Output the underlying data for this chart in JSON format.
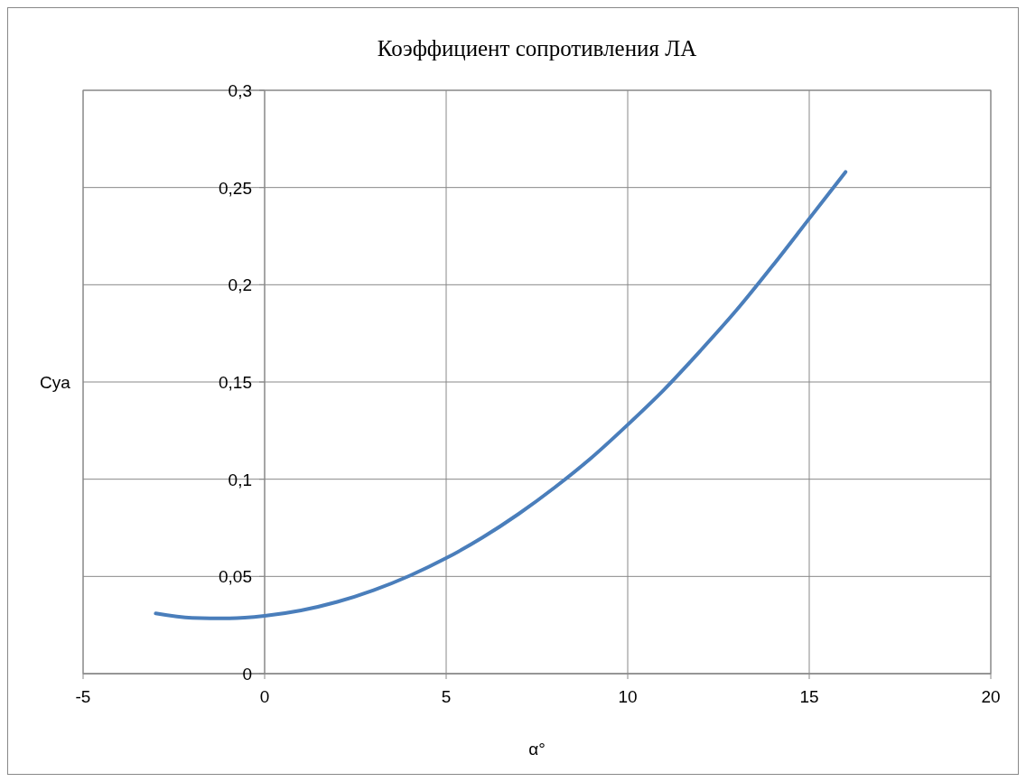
{
  "chart_data": {
    "type": "line",
    "title": "Коэффициент сопротивления ЛА",
    "xlabel": "α°",
    "ylabel": "Cya",
    "x": [
      -3,
      -2,
      -1,
      0,
      1,
      2,
      3,
      4,
      5,
      6,
      7,
      8,
      9,
      10,
      11,
      12,
      13,
      14,
      15,
      16
    ],
    "series": [
      {
        "color": "#4a7ebb",
        "values": [
          0.031,
          0.0287,
          0.0284,
          0.0297,
          0.0325,
          0.0369,
          0.0429,
          0.0504,
          0.0594,
          0.07,
          0.0822,
          0.0959,
          0.111,
          0.128,
          0.146,
          0.166,
          0.187,
          0.21,
          0.234,
          0.258
        ]
      }
    ],
    "xlim": [
      -5,
      20
    ],
    "xticks": [
      -5,
      0,
      5,
      10,
      15,
      20
    ],
    "ylim": [
      0,
      0.3
    ],
    "yticks": [
      0,
      {
        "value": 0.05,
        "label": "0,05"
      },
      {
        "value": 0.1,
        "label": "0,1"
      },
      {
        "value": 0.15,
        "label": "0,15"
      },
      {
        "value": 0.2,
        "label": "0,2"
      },
      {
        "value": 0.25,
        "label": "0,25"
      },
      {
        "value": 0.3,
        "label": "0,3"
      }
    ],
    "grid": true,
    "marker": "none",
    "line_style": "solid"
  }
}
